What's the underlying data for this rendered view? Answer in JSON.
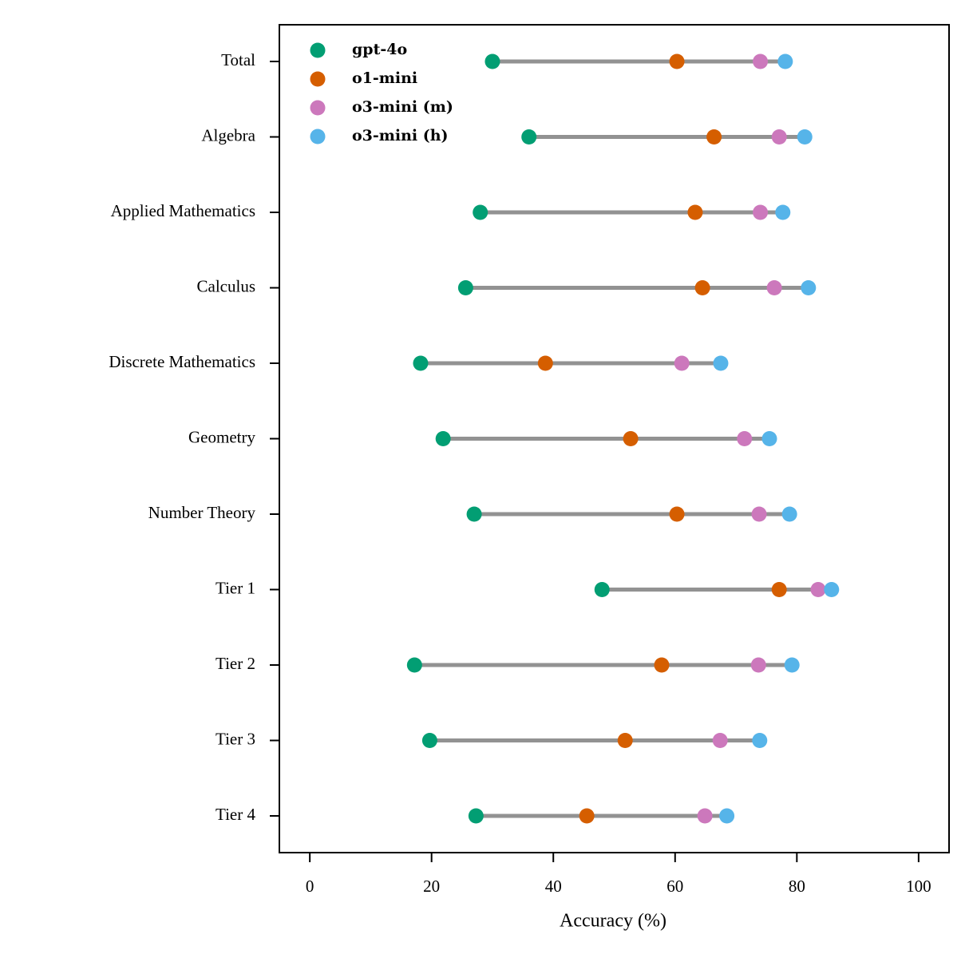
{
  "chart_data": {
    "type": "dumbbell",
    "xlabel": "Accuracy (%)",
    "categories": [
      "Total",
      "Algebra",
      "Applied Mathematics",
      "Calculus",
      "Discrete Mathematics",
      "Geometry",
      "Number Theory",
      "Tier 1",
      "Tier 2",
      "Tier 3",
      "Tier 4"
    ],
    "series": [
      {
        "name": "gpt-4o",
        "color": "#029e73",
        "values": [
          30.0,
          36.0,
          28.0,
          25.6,
          18.2,
          21.9,
          27.0,
          48.0,
          17.2,
          19.7,
          27.3
        ]
      },
      {
        "name": "o1-mini",
        "color": "#d55e00",
        "values": [
          60.3,
          66.4,
          63.3,
          64.5,
          38.7,
          52.7,
          60.3,
          77.1,
          57.8,
          51.8,
          45.5
        ]
      },
      {
        "name": "o3-mini (m)",
        "color": "#cc78bc",
        "values": [
          74.0,
          77.1,
          74.0,
          76.3,
          61.1,
          71.4,
          73.8,
          83.5,
          73.7,
          67.4,
          64.9
        ]
      },
      {
        "name": "o3-mini (h)",
        "color": "#56b4e9",
        "values": [
          78.1,
          81.3,
          77.7,
          81.9,
          67.5,
          75.5,
          78.8,
          85.7,
          79.2,
          73.9,
          68.5
        ]
      }
    ],
    "line_color": "#929292",
    "xlim": [
      -5,
      105
    ],
    "xticks": [
      0,
      20,
      40,
      60,
      80,
      100
    ],
    "legend": "upper left"
  }
}
